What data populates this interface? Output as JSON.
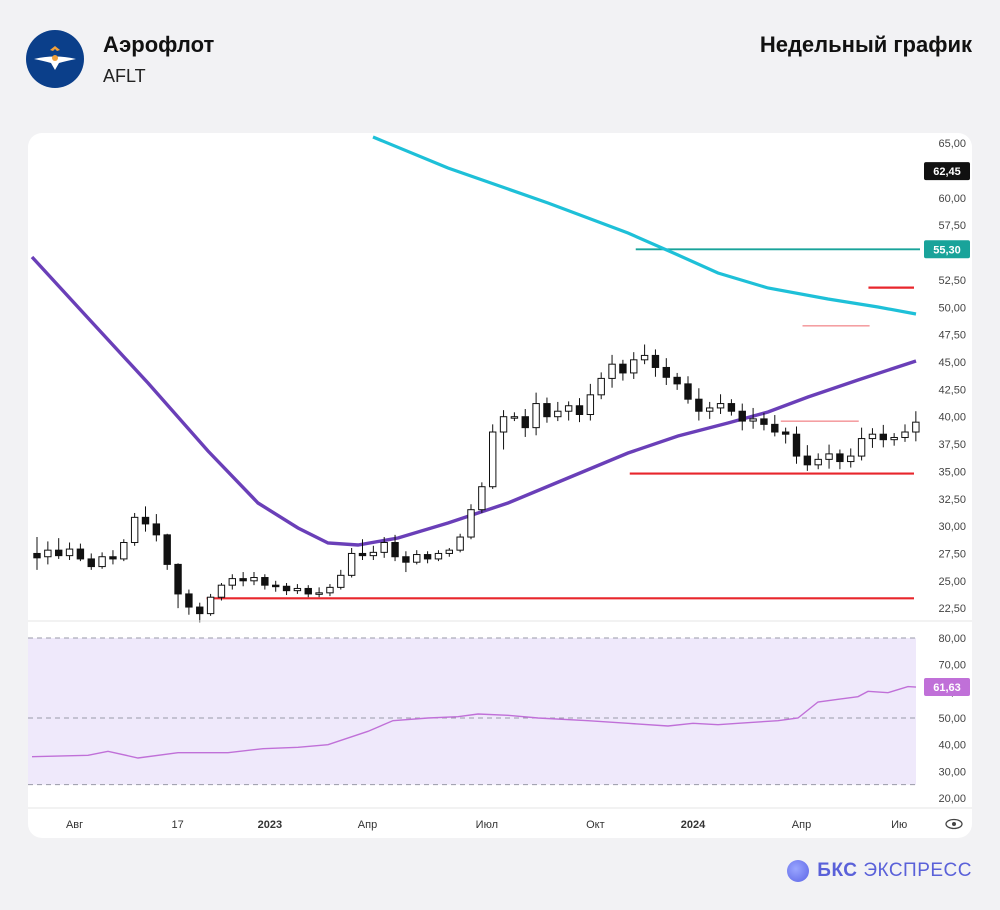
{
  "header": {
    "company": "Аэрофлот",
    "ticker": "AFLT",
    "period": "Недельный график"
  },
  "brand": {
    "bold": "БКС",
    "rest": "ЭКСПРЕСС"
  },
  "colors": {
    "up": "#ffffff",
    "down": "#111111",
    "ma_long": "#1ec0d8",
    "ma_short": "#6a3fb8",
    "support": "#e8262c",
    "level": "#19a39a",
    "rsi": "#c070d8",
    "rsi_band": "#efe9fb",
    "price_badge": "#111111"
  },
  "chart_data": [
    {
      "type": "candlestick",
      "title": "",
      "y_axis_ticks": [
        "22,50",
        "25,00",
        "27,50",
        "30,00",
        "32,50",
        "35,00",
        "37,50",
        "40,00",
        "42,50",
        "45,00",
        "47,50",
        "50,00",
        "52,50",
        "55,00",
        "57,50",
        "60,00",
        "62,50",
        "65,00"
      ],
      "ylim": [
        21.6,
        65.2
      ],
      "x_axis_ticks": [
        {
          "label": "Авг",
          "i": 3
        },
        {
          "label": "17",
          "i": 12.5
        },
        {
          "label": "2023",
          "i": 21
        },
        {
          "label": "Апр",
          "i": 30
        },
        {
          "label": "Июл",
          "i": 41
        },
        {
          "label": "Окт",
          "i": 51
        },
        {
          "label": "2024",
          "i": 60
        },
        {
          "label": "Апр",
          "i": 70
        },
        {
          "label": "Ию",
          "i": 79
        }
      ],
      "last_price": {
        "label": "62,45",
        "value": 62.45
      },
      "level": {
        "label": "55,30",
        "value": 55.3,
        "from_i": 55
      },
      "support_lines": [
        {
          "value": 23.4,
          "from_i": 16,
          "to_i": 80
        },
        {
          "value": 34.8,
          "from_i": 55,
          "to_i": 80
        },
        {
          "value": 51.8,
          "from_i": 77,
          "to_i": 80
        }
      ],
      "resistance_thin_lines": [
        {
          "value": 48.3,
          "from_i": 70,
          "to_i": 76
        },
        {
          "value": 39.6,
          "from_i": 68,
          "to_i": 75
        }
      ],
      "candles": [
        [
          27.5,
          27.1,
          29.0,
          26.0
        ],
        [
          27.2,
          27.8,
          28.6,
          26.5
        ],
        [
          27.8,
          27.3,
          28.9,
          27.0
        ],
        [
          27.3,
          27.9,
          28.5,
          26.9
        ],
        [
          27.9,
          27.0,
          28.4,
          26.8
        ],
        [
          27.0,
          26.3,
          27.5,
          26.0
        ],
        [
          26.3,
          27.2,
          27.6,
          26.1
        ],
        [
          27.2,
          27.0,
          27.8,
          26.5
        ],
        [
          27.0,
          28.5,
          28.8,
          26.8
        ],
        [
          28.5,
          30.8,
          31.2,
          28.2
        ],
        [
          30.8,
          30.2,
          31.8,
          29.5
        ],
        [
          30.2,
          29.2,
          31.1,
          28.6
        ],
        [
          29.2,
          26.5,
          29.3,
          26.0
        ],
        [
          26.5,
          23.8,
          26.6,
          22.5
        ],
        [
          23.8,
          22.6,
          24.2,
          21.9
        ],
        [
          22.6,
          22.0,
          23.0,
          21.2
        ],
        [
          22.0,
          23.5,
          23.8,
          21.8
        ],
        [
          23.5,
          24.6,
          24.8,
          23.2
        ],
        [
          24.6,
          25.2,
          25.6,
          24.2
        ],
        [
          25.2,
          25.0,
          25.8,
          24.5
        ],
        [
          25.0,
          25.3,
          25.8,
          24.6
        ],
        [
          25.3,
          24.6,
          25.6,
          24.2
        ],
        [
          24.6,
          24.5,
          25.0,
          24.0
        ],
        [
          24.5,
          24.1,
          24.8,
          23.7
        ],
        [
          24.1,
          24.3,
          24.7,
          23.8
        ],
        [
          24.3,
          23.8,
          24.6,
          23.5
        ],
        [
          23.8,
          23.9,
          24.4,
          23.5
        ],
        [
          23.9,
          24.4,
          24.7,
          23.6
        ],
        [
          24.4,
          25.5,
          26.0,
          24.2
        ],
        [
          25.5,
          27.5,
          28.0,
          25.3
        ],
        [
          27.5,
          27.3,
          28.8,
          26.9
        ],
        [
          27.3,
          27.6,
          28.2,
          26.9
        ],
        [
          27.6,
          28.5,
          29.0,
          27.1
        ],
        [
          28.5,
          27.2,
          29.2,
          26.8
        ],
        [
          27.2,
          26.7,
          27.7,
          25.8
        ],
        [
          26.7,
          27.4,
          27.8,
          26.5
        ],
        [
          27.4,
          27.0,
          27.7,
          26.6
        ],
        [
          27.0,
          27.5,
          27.8,
          26.8
        ],
        [
          27.5,
          27.8,
          28.0,
          27.2
        ],
        [
          27.8,
          29.0,
          29.3,
          27.6
        ],
        [
          29.0,
          31.5,
          32.0,
          28.8
        ],
        [
          31.5,
          33.6,
          34.0,
          31.2
        ],
        [
          33.6,
          38.6,
          39.3,
          33.4
        ],
        [
          38.6,
          40.0,
          40.6,
          37.0
        ]
      ]
    }
  ]
}
